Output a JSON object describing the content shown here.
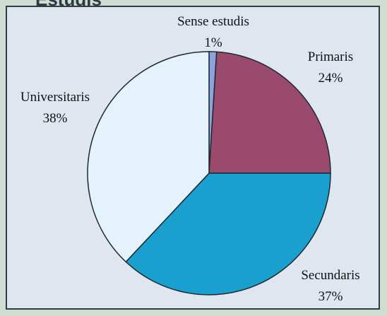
{
  "header": {
    "title_fragment": "Estudis"
  },
  "chart_data": {
    "type": "pie",
    "title": "",
    "slices": [
      {
        "label": "Sense estudis",
        "value": 1,
        "display": "1%",
        "color": "#8fa2e0"
      },
      {
        "label": "Primaris",
        "value": 24,
        "display": "24%",
        "color": "#9a4a6d"
      },
      {
        "label": "Secundaris",
        "value": 37,
        "display": "37%",
        "color": "#1aa0cf"
      },
      {
        "label": "Universitaris",
        "value": 38,
        "display": "38%",
        "color": "#e4f2fb"
      }
    ],
    "start_angle_deg": 0,
    "direction": "clockwise",
    "legend": "none"
  }
}
